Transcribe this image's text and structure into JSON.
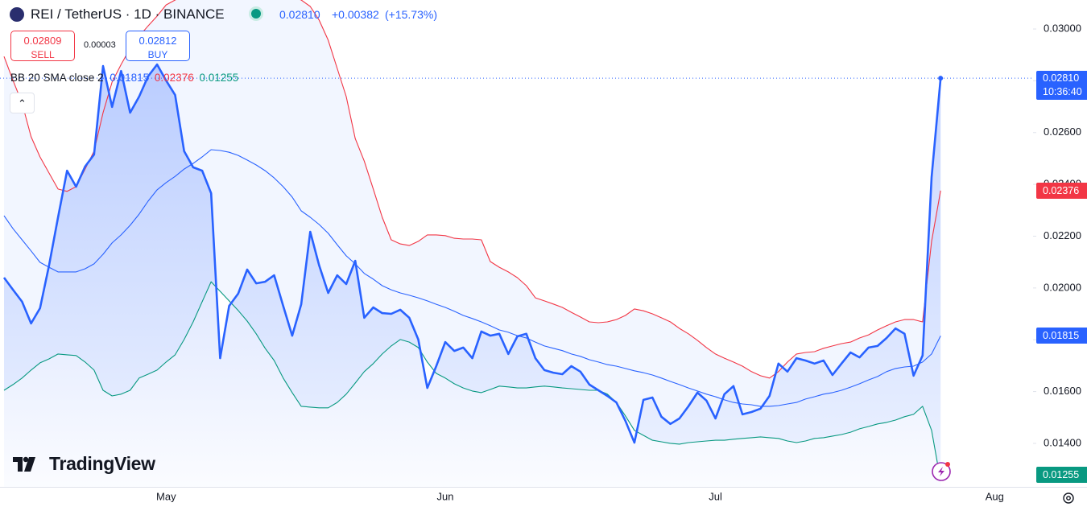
{
  "header": {
    "symbol": "REI / TetherUS · 1D · BINANCE",
    "change": "+0.00382",
    "change_percent": "(+15.73%)",
    "brand": "TradingView"
  },
  "trade": {
    "sell_price": "0.02809",
    "sell": "SELL",
    "spread": "0.00003",
    "buy_price": "0.02812",
    "buy": "BUY"
  },
  "indicator": {
    "label": "BB 20 SMA close 2"
  },
  "chart_data": {
    "type": "line",
    "categories": [
      null,
      null,
      null,
      null,
      null,
      null,
      null,
      null,
      null,
      null,
      null,
      null,
      null,
      null,
      null,
      null,
      null,
      null,
      "May",
      null,
      null,
      null,
      null,
      null,
      null,
      null,
      null,
      null,
      null,
      null,
      null,
      null,
      null,
      null,
      null,
      null,
      null,
      null,
      null,
      null,
      null,
      null,
      null,
      null,
      null,
      null,
      null,
      null,
      null,
      "Jun",
      null,
      null,
      null,
      null,
      null,
      null,
      null,
      null,
      null,
      null,
      null,
      null,
      null,
      null,
      null,
      null,
      null,
      null,
      null,
      null,
      null,
      null,
      null,
      null,
      null,
      null,
      null,
      null,
      null,
      "Jul",
      null,
      null,
      null,
      null,
      null,
      null,
      null,
      null,
      null,
      null,
      null,
      null,
      null,
      null,
      null,
      null,
      null,
      null,
      null,
      null,
      null,
      null,
      null,
      null,
      null,
      null,
      null,
      null,
      null,
      null,
      "Aug",
      null,
      null,
      null,
      null
    ],
    "series": [
      {
        "color": "#2962ff",
        "values": [
          0.0204,
          0.01993,
          0.01947,
          0.01863,
          0.01922,
          0.02087,
          0.02273,
          0.02453,
          0.02391,
          0.02469,
          0.02515,
          0.02857,
          0.02699,
          0.02838,
          0.02677,
          0.02739,
          0.02817,
          0.02863,
          0.02801,
          0.02745,
          0.02528,
          0.02466,
          0.02453,
          0.02366,
          0.01729,
          0.01931,
          0.01978,
          0.02071,
          0.02018,
          0.02024,
          0.02049,
          0.01931,
          0.01816,
          0.01937,
          0.02217,
          0.02087,
          0.01981,
          0.02049,
          0.02015,
          0.02105,
          0.01885,
          0.01925,
          0.01903,
          0.019,
          0.01916,
          0.01885,
          0.01801,
          0.01614,
          0.01698,
          0.01791,
          0.01757,
          0.0177,
          0.01729,
          0.01832,
          0.01816,
          0.01823,
          0.01745,
          0.01813,
          0.01823,
          0.01729,
          0.01683,
          0.01673,
          0.01667,
          0.01698,
          0.01677,
          0.01627,
          0.01605,
          0.01583,
          0.01558,
          0.01487,
          0.01403,
          0.01568,
          0.01577,
          0.01503,
          0.01475,
          0.01496,
          0.01543,
          0.01596,
          0.01565,
          0.01496,
          0.0159,
          0.01621,
          0.01512,
          0.01521,
          0.01534,
          0.01583,
          0.01708,
          0.01677,
          0.01729,
          0.0172,
          0.01708,
          0.0172,
          0.01664,
          0.01708,
          0.01751,
          0.01732,
          0.0177,
          0.01776,
          0.01807,
          0.01844,
          0.01823,
          0.01661,
          0.01739,
          0.02428,
          0.0281,
          null,
          null,
          null,
          null,
          null,
          null,
          null,
          null,
          null,
          null
        ]
      },
      {
        "color": "#f23645",
        "values": [
          0.02894,
          0.02801,
          0.02714,
          0.02584,
          0.02506,
          0.02444,
          0.02382,
          0.02373,
          0.02391,
          0.02459,
          0.02528,
          0.02677,
          0.02795,
          0.02863,
          0.02925,
          0.02972,
          0.03012,
          0.0305,
          0.03093,
          0.03112,
          0.0313,
          0.03143,
          0.03155,
          0.03162,
          0.03168,
          0.03174,
          0.03174,
          0.03174,
          0.03168,
          0.03162,
          0.03149,
          0.03137,
          0.03124,
          0.03112,
          0.03087,
          0.03034,
          0.02957,
          0.02848,
          0.02739,
          0.02577,
          0.0249,
          0.02382,
          0.02273,
          0.02186,
          0.0217,
          0.02164,
          0.0218,
          0.02205,
          0.02205,
          0.02202,
          0.02192,
          0.02189,
          0.02189,
          0.02186,
          0.02102,
          0.0208,
          0.02062,
          0.0204,
          0.02009,
          0.01962,
          0.0195,
          0.01938,
          0.01925,
          0.01906,
          0.01888,
          0.01869,
          0.01866,
          0.01869,
          0.01878,
          0.01894,
          0.01919,
          0.01912,
          0.019,
          0.01885,
          0.01869,
          0.01844,
          0.01823,
          0.01798,
          0.0177,
          0.01745,
          0.01729,
          0.01714,
          0.01698,
          0.01677,
          0.01661,
          0.01652,
          0.01677,
          0.01714,
          0.01745,
          0.01751,
          0.01754,
          0.01767,
          0.01776,
          0.01785,
          0.01791,
          0.01807,
          0.01819,
          0.01838,
          0.01854,
          0.01869,
          0.01878,
          0.01878,
          0.01869,
          0.0218,
          0.02376,
          null,
          null,
          null,
          null,
          null,
          null,
          null,
          null,
          null,
          null
        ]
      },
      {
        "color": "#2962ff",
        "values": [
          0.02279,
          0.02229,
          0.02186,
          0.02143,
          0.02099,
          0.0208,
          0.02062,
          0.02062,
          0.02062,
          0.02074,
          0.02093,
          0.0213,
          0.02174,
          0.02205,
          0.02242,
          0.02285,
          0.02335,
          0.02379,
          0.02407,
          0.02431,
          0.02459,
          0.02481,
          0.02506,
          0.02534,
          0.02531,
          0.02524,
          0.02512,
          0.02494,
          0.02475,
          0.02453,
          0.02425,
          0.02391,
          0.02351,
          0.02298,
          0.02273,
          0.02245,
          0.02211,
          0.02167,
          0.02124,
          0.02093,
          0.02056,
          0.02034,
          0.02009,
          0.01993,
          0.01981,
          0.01972,
          0.01962,
          0.0195,
          0.01937,
          0.01925,
          0.0191,
          0.01894,
          0.01882,
          0.01869,
          0.01854,
          0.01838,
          0.01829,
          0.01816,
          0.01807,
          0.01791,
          0.01776,
          0.01767,
          0.01758,
          0.01745,
          0.01736,
          0.01723,
          0.01714,
          0.01704,
          0.01698,
          0.01689,
          0.0168,
          0.01673,
          0.01664,
          0.01652,
          0.01639,
          0.01627,
          0.01614,
          0.01602,
          0.0159,
          0.0158,
          0.01568,
          0.01558,
          0.01552,
          0.01549,
          0.01543,
          0.01543,
          0.01546,
          0.01552,
          0.01558,
          0.01571,
          0.0158,
          0.0159,
          0.01596,
          0.01605,
          0.01617,
          0.0163,
          0.01645,
          0.01658,
          0.01677,
          0.01689,
          0.01695,
          0.01698,
          0.01714,
          0.01745,
          0.01815,
          null,
          null,
          null,
          null,
          null,
          null,
          null,
          null,
          null,
          null
        ]
      },
      {
        "color": "#089981",
        "values": [
          0.01605,
          0.01627,
          0.01652,
          0.01683,
          0.01711,
          0.01726,
          0.01745,
          0.01742,
          0.01739,
          0.01714,
          0.01683,
          0.01605,
          0.01583,
          0.0159,
          0.01605,
          0.01652,
          0.01667,
          0.01683,
          0.01714,
          0.01742,
          0.01801,
          0.01869,
          0.01947,
          0.02024,
          0.01987,
          0.0195,
          0.01913,
          0.01872,
          0.01823,
          0.01767,
          0.0172,
          0.01652,
          0.01596,
          0.01543,
          0.0154,
          0.01537,
          0.01537,
          0.01558,
          0.0159,
          0.01633,
          0.01677,
          0.01708,
          0.01745,
          0.01776,
          0.01801,
          0.01791,
          0.0177,
          0.01714,
          0.0167,
          0.01652,
          0.0163,
          0.01614,
          0.01602,
          0.01596,
          0.01608,
          0.01621,
          0.01618,
          0.01614,
          0.01614,
          0.01618,
          0.01621,
          0.01618,
          0.01614,
          0.01611,
          0.01608,
          0.01605,
          0.01605,
          0.0159,
          0.01558,
          0.01506,
          0.0145,
          0.01431,
          0.01412,
          0.01406,
          0.014,
          0.01397,
          0.01403,
          0.01406,
          0.01409,
          0.01412,
          0.01412,
          0.01416,
          0.01419,
          0.01422,
          0.01425,
          0.01422,
          0.01419,
          0.01409,
          0.01403,
          0.01409,
          0.01419,
          0.01422,
          0.01428,
          0.01434,
          0.01443,
          0.01456,
          0.01465,
          0.01475,
          0.01481,
          0.0149,
          0.01503,
          0.01512,
          0.01543,
          0.0145,
          0.01255,
          null,
          null,
          null,
          null,
          null,
          null,
          null,
          null,
          null,
          null
        ]
      }
    ],
    "ylim": [
      0.01232,
      0.03112
    ],
    "yticks": [
      {
        "value": 0.014,
        "label": "0.01400"
      },
      {
        "value": 0.016,
        "label": "0.01600"
      },
      {
        "value": 0.018,
        "label": "0.01800"
      },
      {
        "value": 0.02,
        "label": "0.02000"
      },
      {
        "value": 0.022,
        "label": "0.02200"
      },
      {
        "value": 0.024,
        "label": "0.02400"
      },
      {
        "value": 0.026,
        "label": "0.02600"
      },
      {
        "value": 0.028,
        "label": "0.02800"
      },
      {
        "value": 0.03,
        "label": "0.03000"
      }
    ],
    "grid": false,
    "last_value_labels": [
      {
        "value": 0.0281,
        "label": "0.02810",
        "color": "#2962ff"
      },
      {
        "value": 0.02376,
        "label": "0.02376",
        "color": "#f23645"
      },
      {
        "value": 0.01815,
        "label": "0.01815",
        "color": "#2962ff"
      },
      {
        "value": 0.01255,
        "label": "0.01255",
        "color": "#089981"
      }
    ],
    "countdown": "10:36:40"
  }
}
